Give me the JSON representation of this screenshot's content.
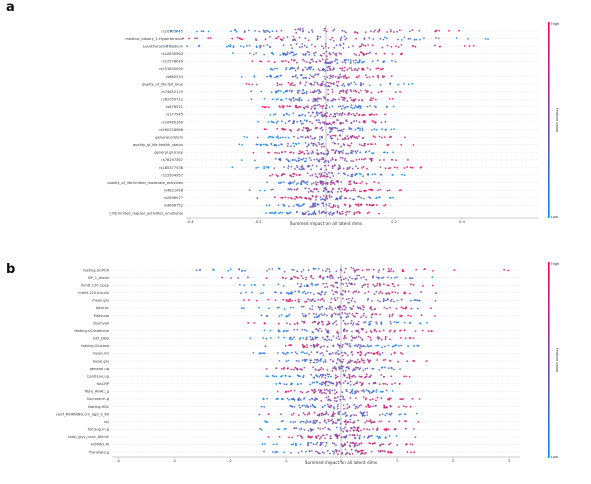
{
  "panels": [
    {
      "letter": "a",
      "chart_data": {
        "type": "scatter",
        "subtype": "shap-beeswarm",
        "features": [
          "rs10305745",
          "medical_history_1.Hypertension",
          "Levothyroxine Sodium",
          "rs10830963",
          "rs12578639",
          "rs191835090",
          "rs662533",
          "quality_of_life.felt_blue",
          "rs74652119",
          "rs62059712",
          "rs878521",
          "rs177545",
          "rs10485160",
          "rs560728968",
          "general.protein",
          "quality_of_life.health_status",
          "general.glucose",
          "rs78197567",
          "rs185377536",
          "rs15504957",
          "quality_of_life.limited_moderate_activities",
          "rs4821438",
          "rs2896077",
          "rs4806752",
          "l_life.limited_regular_activities_emotional"
        ],
        "x_ticks": [
          "-0.4",
          "-0.2",
          "0.2",
          "0.4"
        ],
        "xlim": [
          -0.5,
          0.55
        ],
        "xlabel": "Summed impact on all latent dims",
        "colorbar": {
          "label": "Feature value",
          "high": "High",
          "low": "Low"
        }
      }
    },
    {
      "letter": "b",
      "chart_data": {
        "type": "scatter",
        "subtype": "shap-beeswarm",
        "features": [
          "fasting.UCPCR",
          "BP_1_mean",
          "mmtt.120.Cpep",
          "mmtt.120.Insulin",
          "mean.glu",
          "total.kc",
          "Matsuda",
          "Stumvoll",
          "fasting.UCreatinine",
          "GLY_DDS",
          "fasting.Glucose",
          "mean.ins",
          "basal.glu",
          "general.ug",
          "Carotene.ug",
          "fasCRP",
          "fibre_AOAC_g",
          "Sucrose.m.g",
          "fasting.HDL",
          "cwsf_MORNING.cm_Sgd_3_60",
          "vcj",
          "Tot.Sug.m.g",
          "total_glyc_conc_60min",
          "HOMA2.IR",
          "TransFats.g"
        ],
        "x_ticks": [
          "-4",
          "-3",
          "-2",
          "-1",
          "0",
          "1",
          "2",
          "3"
        ],
        "xlim": [
          -4.2,
          3.4
        ],
        "xlabel": "Summed impact on all latent dims",
        "colorbar": {
          "label": "Feature value",
          "high": "High",
          "low": "Low"
        }
      }
    }
  ],
  "colors": {
    "high": "#ff0052",
    "low": "#008bfb",
    "mid": "#7b3fb0"
  }
}
